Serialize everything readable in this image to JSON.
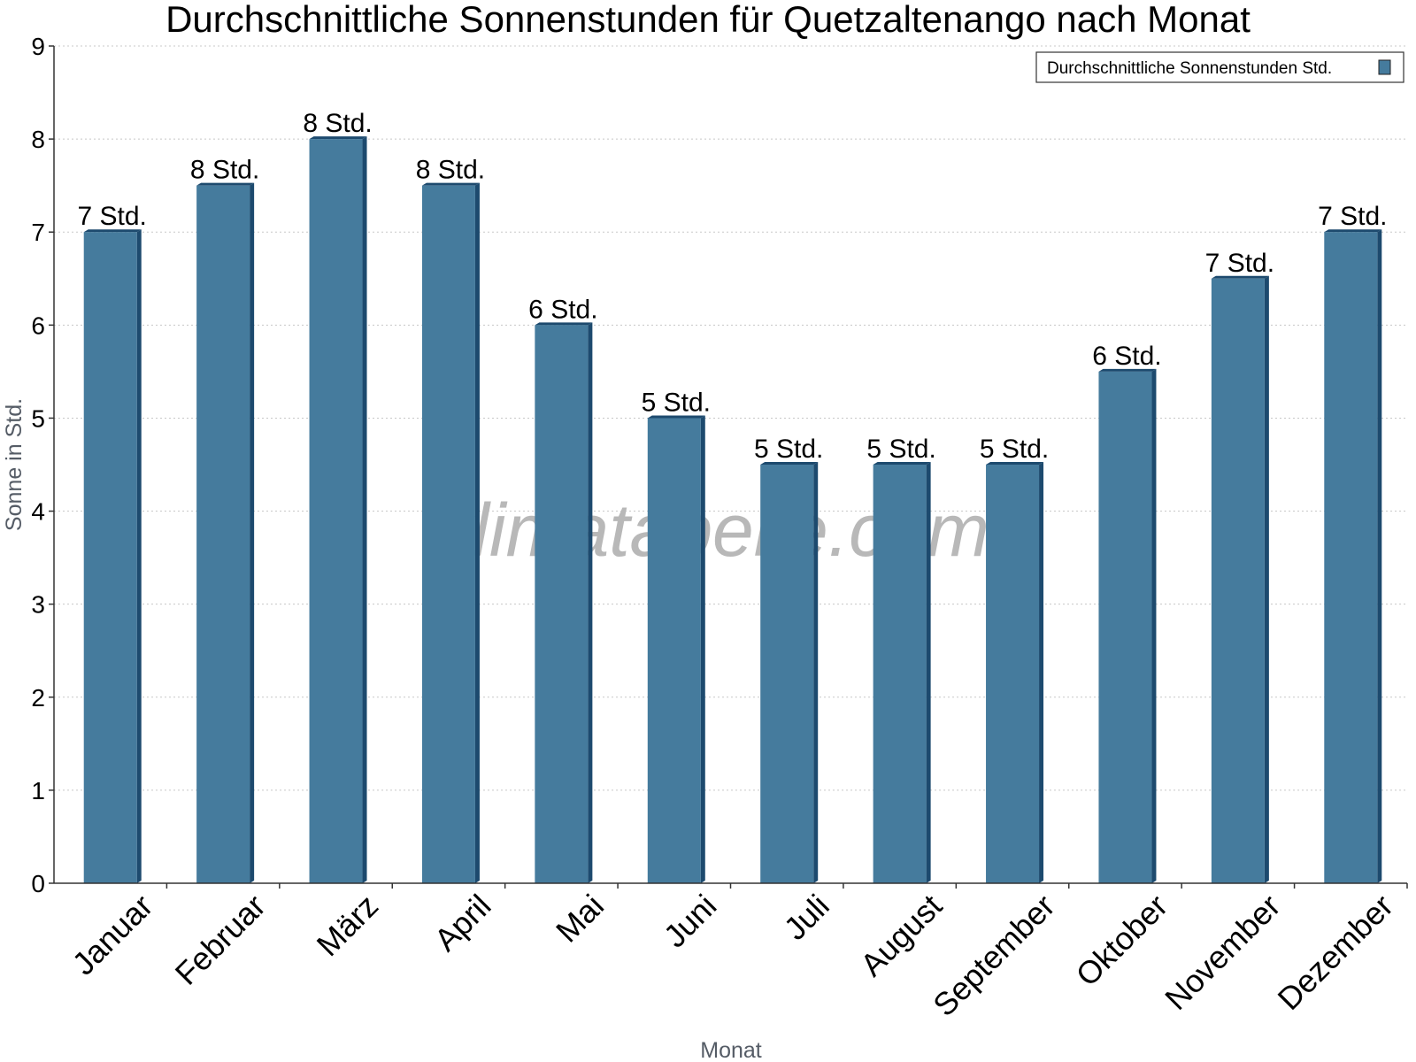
{
  "chart_data": {
    "type": "bar",
    "title": "Durchschnittliche Sonnenstunden für Quetzaltenango nach Monat",
    "xlabel": "Monat",
    "ylabel": "Sonne in Std.",
    "ylim": [
      0,
      9
    ],
    "yticks": [
      "0",
      "1",
      "2",
      "3",
      "4",
      "5",
      "6",
      "7",
      "8",
      "9"
    ],
    "grid": true,
    "legend_position": "top-right",
    "categories": [
      "Januar",
      "Februar",
      "März",
      "April",
      "Mai",
      "Juni",
      "Juli",
      "August",
      "September",
      "Oktober",
      "November",
      "Dezember"
    ],
    "series": [
      {
        "name": "Durchschnittliche Sonnenstunden Std.",
        "color": "#457b9d",
        "dark_color": "#1d4a6e",
        "values": [
          7,
          7.5,
          8,
          7.5,
          6,
          5,
          4.5,
          4.5,
          4.5,
          5.5,
          6.5,
          7
        ],
        "data_labels": [
          "7 Std.",
          "8 Std.",
          "8 Std.",
          "8 Std.",
          "6 Std.",
          "5 Std.",
          "5 Std.",
          "5 Std.",
          "5 Std.",
          "6 Std.",
          "7 Std.",
          "7 Std."
        ]
      }
    ]
  },
  "watermark": "klimatabelle.com"
}
